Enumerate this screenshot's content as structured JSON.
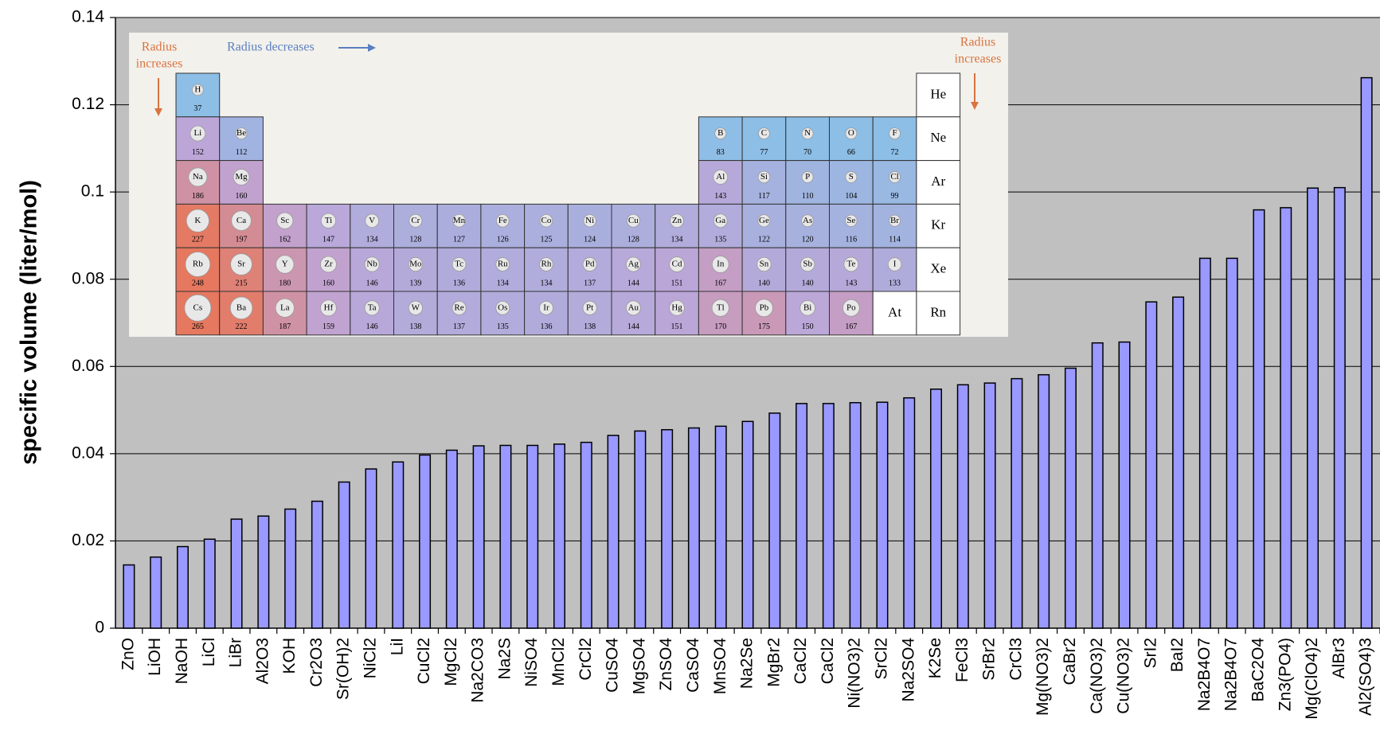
{
  "chart_data": {
    "type": "bar",
    "y_label": "specific volume (liter/mol)",
    "categories": [
      "ZnO",
      "LiOH",
      "NaOH",
      "LiCl",
      "LiBr",
      "Al2O3",
      "KOH",
      "Cr2O3",
      "Sr(OH)2",
      "NiCl2",
      "LiI",
      "CuCl2",
      "MgCl2",
      "Na2CO3",
      "Na2S",
      "NiSO4",
      "MnCl2",
      "CrCl2",
      "CuSO4",
      "MgSO4",
      "ZnSO4",
      "CaSO4",
      "MnSO4",
      "Na2Se",
      "MgBr2",
      "CaCl2",
      "CaCl2",
      "Ni(NO3)2",
      "SrCl2",
      "Na2SO4",
      "K2Se",
      "FeCl3",
      "SrBr2",
      "CrCl3",
      "Mg(NO3)2",
      "CaBr2",
      "Ca(NO3)2",
      "Cu(NO3)2",
      "SrI2",
      "BaI2",
      "Na2B4O7",
      "Na2B4O7",
      "BaC2O4",
      "Zn3(PO4)",
      "Mg(ClO4)2",
      "AlBr3",
      "Al2(SO4)3"
    ],
    "values": [
      0.0145,
      0.0163,
      0.0187,
      0.0204,
      0.025,
      0.0257,
      0.0273,
      0.0291,
      0.0335,
      0.0365,
      0.0381,
      0.0397,
      0.0408,
      0.0418,
      0.0419,
      0.0419,
      0.0422,
      0.0426,
      0.0442,
      0.0452,
      0.0455,
      0.0459,
      0.0463,
      0.0474,
      0.0493,
      0.0515,
      0.0515,
      0.0517,
      0.0518,
      0.0528,
      0.0548,
      0.0558,
      0.0562,
      0.0572,
      0.0581,
      0.0596,
      0.0654,
      0.0656,
      0.0748,
      0.0759,
      0.0848,
      0.0848,
      0.0959,
      0.0964,
      0.1009,
      0.101,
      0.1262
    ],
    "color": "#9999ff",
    "ylim": [
      0,
      0.14
    ],
    "yticks": [
      0,
      0.02,
      0.04,
      0.06,
      0.08,
      0.1,
      0.12,
      0.14
    ],
    "grid": true
  },
  "inset": {
    "left_note": [
      "Radius",
      "increases"
    ],
    "top_note": "Radius decreases",
    "right_note": [
      "Radius",
      "increases"
    ],
    "rows": [
      [
        {
          "symbol": "H",
          "radius": 37
        },
        null,
        null,
        null,
        null,
        null,
        null,
        null,
        null,
        null,
        null,
        null,
        null,
        null,
        null,
        null,
        null,
        {
          "symbol": "He"
        }
      ],
      [
        {
          "symbol": "Li",
          "radius": 152
        },
        {
          "symbol": "Be",
          "radius": 112
        },
        null,
        null,
        null,
        null,
        null,
        null,
        null,
        null,
        null,
        null,
        {
          "symbol": "B",
          "radius": 83
        },
        {
          "symbol": "C",
          "radius": 77
        },
        {
          "symbol": "N",
          "radius": 70
        },
        {
          "symbol": "O",
          "radius": 66
        },
        {
          "symbol": "F",
          "radius": 72
        },
        {
          "symbol": "Ne"
        }
      ],
      [
        {
          "symbol": "Na",
          "radius": 186
        },
        {
          "symbol": "Mg",
          "radius": 160
        },
        null,
        null,
        null,
        null,
        null,
        null,
        null,
        null,
        null,
        null,
        {
          "symbol": "Al",
          "radius": 143
        },
        {
          "symbol": "Si",
          "radius": 117
        },
        {
          "symbol": "P",
          "radius": 110
        },
        {
          "symbol": "S",
          "radius": 104
        },
        {
          "symbol": "Cl",
          "radius": 99
        },
        {
          "symbol": "Ar"
        }
      ],
      [
        {
          "symbol": "K",
          "radius": 227
        },
        {
          "symbol": "Ca",
          "radius": 197
        },
        {
          "symbol": "Sc",
          "radius": 162
        },
        {
          "symbol": "Ti",
          "radius": 147
        },
        {
          "symbol": "V",
          "radius": 134
        },
        {
          "symbol": "Cr",
          "radius": 128
        },
        {
          "symbol": "Mn",
          "radius": 127
        },
        {
          "symbol": "Fe",
          "radius": 126
        },
        {
          "symbol": "Co",
          "radius": 125
        },
        {
          "symbol": "Ni",
          "radius": 124
        },
        {
          "symbol": "Cu",
          "radius": 128
        },
        {
          "symbol": "Zn",
          "radius": 134
        },
        {
          "symbol": "Ga",
          "radius": 135
        },
        {
          "symbol": "Ge",
          "radius": 122
        },
        {
          "symbol": "As",
          "radius": 120
        },
        {
          "symbol": "Se",
          "radius": 116
        },
        {
          "symbol": "Br",
          "radius": 114
        },
        {
          "symbol": "Kr"
        }
      ],
      [
        {
          "symbol": "Rb",
          "radius": 248
        },
        {
          "symbol": "Sr",
          "radius": 215
        },
        {
          "symbol": "Y",
          "radius": 180
        },
        {
          "symbol": "Zr",
          "radius": 160
        },
        {
          "symbol": "Nb",
          "radius": 146
        },
        {
          "symbol": "Mo",
          "radius": 139
        },
        {
          "symbol": "Tc",
          "radius": 136
        },
        {
          "symbol": "Ru",
          "radius": 134
        },
        {
          "symbol": "Rh",
          "radius": 134
        },
        {
          "symbol": "Pd",
          "radius": 137
        },
        {
          "symbol": "Ag",
          "radius": 144
        },
        {
          "symbol": "Cd",
          "radius": 151
        },
        {
          "symbol": "In",
          "radius": 167
        },
        {
          "symbol": "Sn",
          "radius": 140
        },
        {
          "symbol": "Sb",
          "radius": 140
        },
        {
          "symbol": "Te",
          "radius": 143
        },
        {
          "symbol": "I",
          "radius": 133
        },
        {
          "symbol": "Xe"
        }
      ],
      [
        {
          "symbol": "Cs",
          "radius": 265
        },
        {
          "symbol": "Ba",
          "radius": 222
        },
        {
          "symbol": "La",
          "radius": 187
        },
        {
          "symbol": "Hf",
          "radius": 159
        },
        {
          "symbol": "Ta",
          "radius": 146
        },
        {
          "symbol": "W",
          "radius": 138
        },
        {
          "symbol": "Re",
          "radius": 137
        },
        {
          "symbol": "Os",
          "radius": 135
        },
        {
          "symbol": "Ir",
          "radius": 136
        },
        {
          "symbol": "Pt",
          "radius": 138
        },
        {
          "symbol": "Au",
          "radius": 144
        },
        {
          "symbol": "Hg",
          "radius": 151
        },
        {
          "symbol": "Tl",
          "radius": 170
        },
        {
          "symbol": "Pb",
          "radius": 175
        },
        {
          "symbol": "Bi",
          "radius": 150
        },
        {
          "symbol": "Po",
          "radius": 167
        },
        {
          "symbol": "At"
        },
        {
          "symbol": "Rn"
        }
      ]
    ]
  }
}
